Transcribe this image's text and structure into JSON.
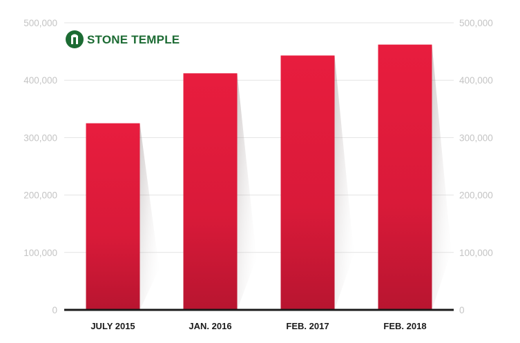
{
  "logo": {
    "text": "STONE TEMPLE",
    "color": "#1c6b33"
  },
  "chart_data": {
    "type": "bar",
    "categories": [
      "JULY 2015",
      "JAN. 2016",
      "FEB. 2017",
      "FEB. 2018"
    ],
    "values": [
      325000,
      412000,
      443000,
      462000
    ],
    "title": "",
    "xlabel": "",
    "ylabel": "",
    "ylim": [
      0,
      500000
    ],
    "y_ticks": [
      0,
      100000,
      200000,
      300000,
      400000,
      500000
    ],
    "y_tick_labels": [
      "0",
      "100,000",
      "200,000",
      "300,000",
      "400,000",
      "500,000"
    ],
    "y_axis_both_sides": true,
    "grid": true,
    "bar_color": "#e31c3d",
    "bar_color_dark": "#b81530",
    "axis_color": "#1a1a1a",
    "grid_color": "#e3e3e3"
  }
}
